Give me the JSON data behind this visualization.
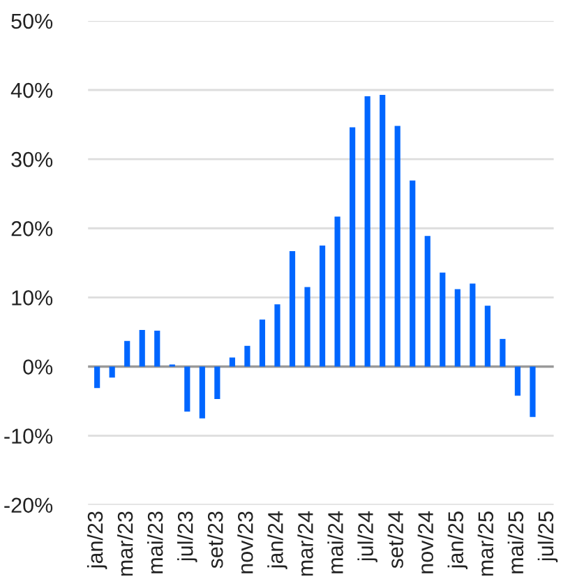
{
  "chart_data": {
    "type": "bar",
    "categories": [
      "jan/23",
      null,
      "mar/23",
      null,
      "mai/23",
      null,
      "jul/23",
      null,
      "set/23",
      null,
      "nov/23",
      null,
      "jan/24",
      null,
      "mar/24",
      null,
      "mai/24",
      null,
      "jul/24",
      null,
      "set/24",
      null,
      "nov/24",
      null,
      "jan/25",
      null,
      "mar/25",
      null,
      "mai/25",
      null,
      "jul/25"
    ],
    "values": [
      -3.1,
      -1.6,
      3.7,
      5.3,
      5.2,
      0.3,
      -6.5,
      -7.5,
      -4.7,
      1.3,
      3.0,
      6.8,
      9.0,
      16.7,
      11.5,
      17.5,
      21.7,
      34.6,
      39.1,
      39.3,
      34.8,
      26.9,
      18.9,
      13.6,
      11.2,
      12.0,
      8.8,
      4.0,
      -4.2,
      -7.3,
      null
    ],
    "color": "#0066ff",
    "ylim": [
      -20,
      50
    ],
    "yticks": [
      {
        "value": -20,
        "label": "-20%"
      },
      {
        "value": -10,
        "label": "-10%"
      },
      {
        "value": 0,
        "label": "0%"
      },
      {
        "value": 10,
        "label": "10%"
      },
      {
        "value": 20,
        "label": "20%"
      },
      {
        "value": 30,
        "label": "30%"
      },
      {
        "value": 40,
        "label": "40%"
      },
      {
        "value": 50,
        "label": "50%"
      }
    ],
    "grid": "y",
    "legend": false
  }
}
